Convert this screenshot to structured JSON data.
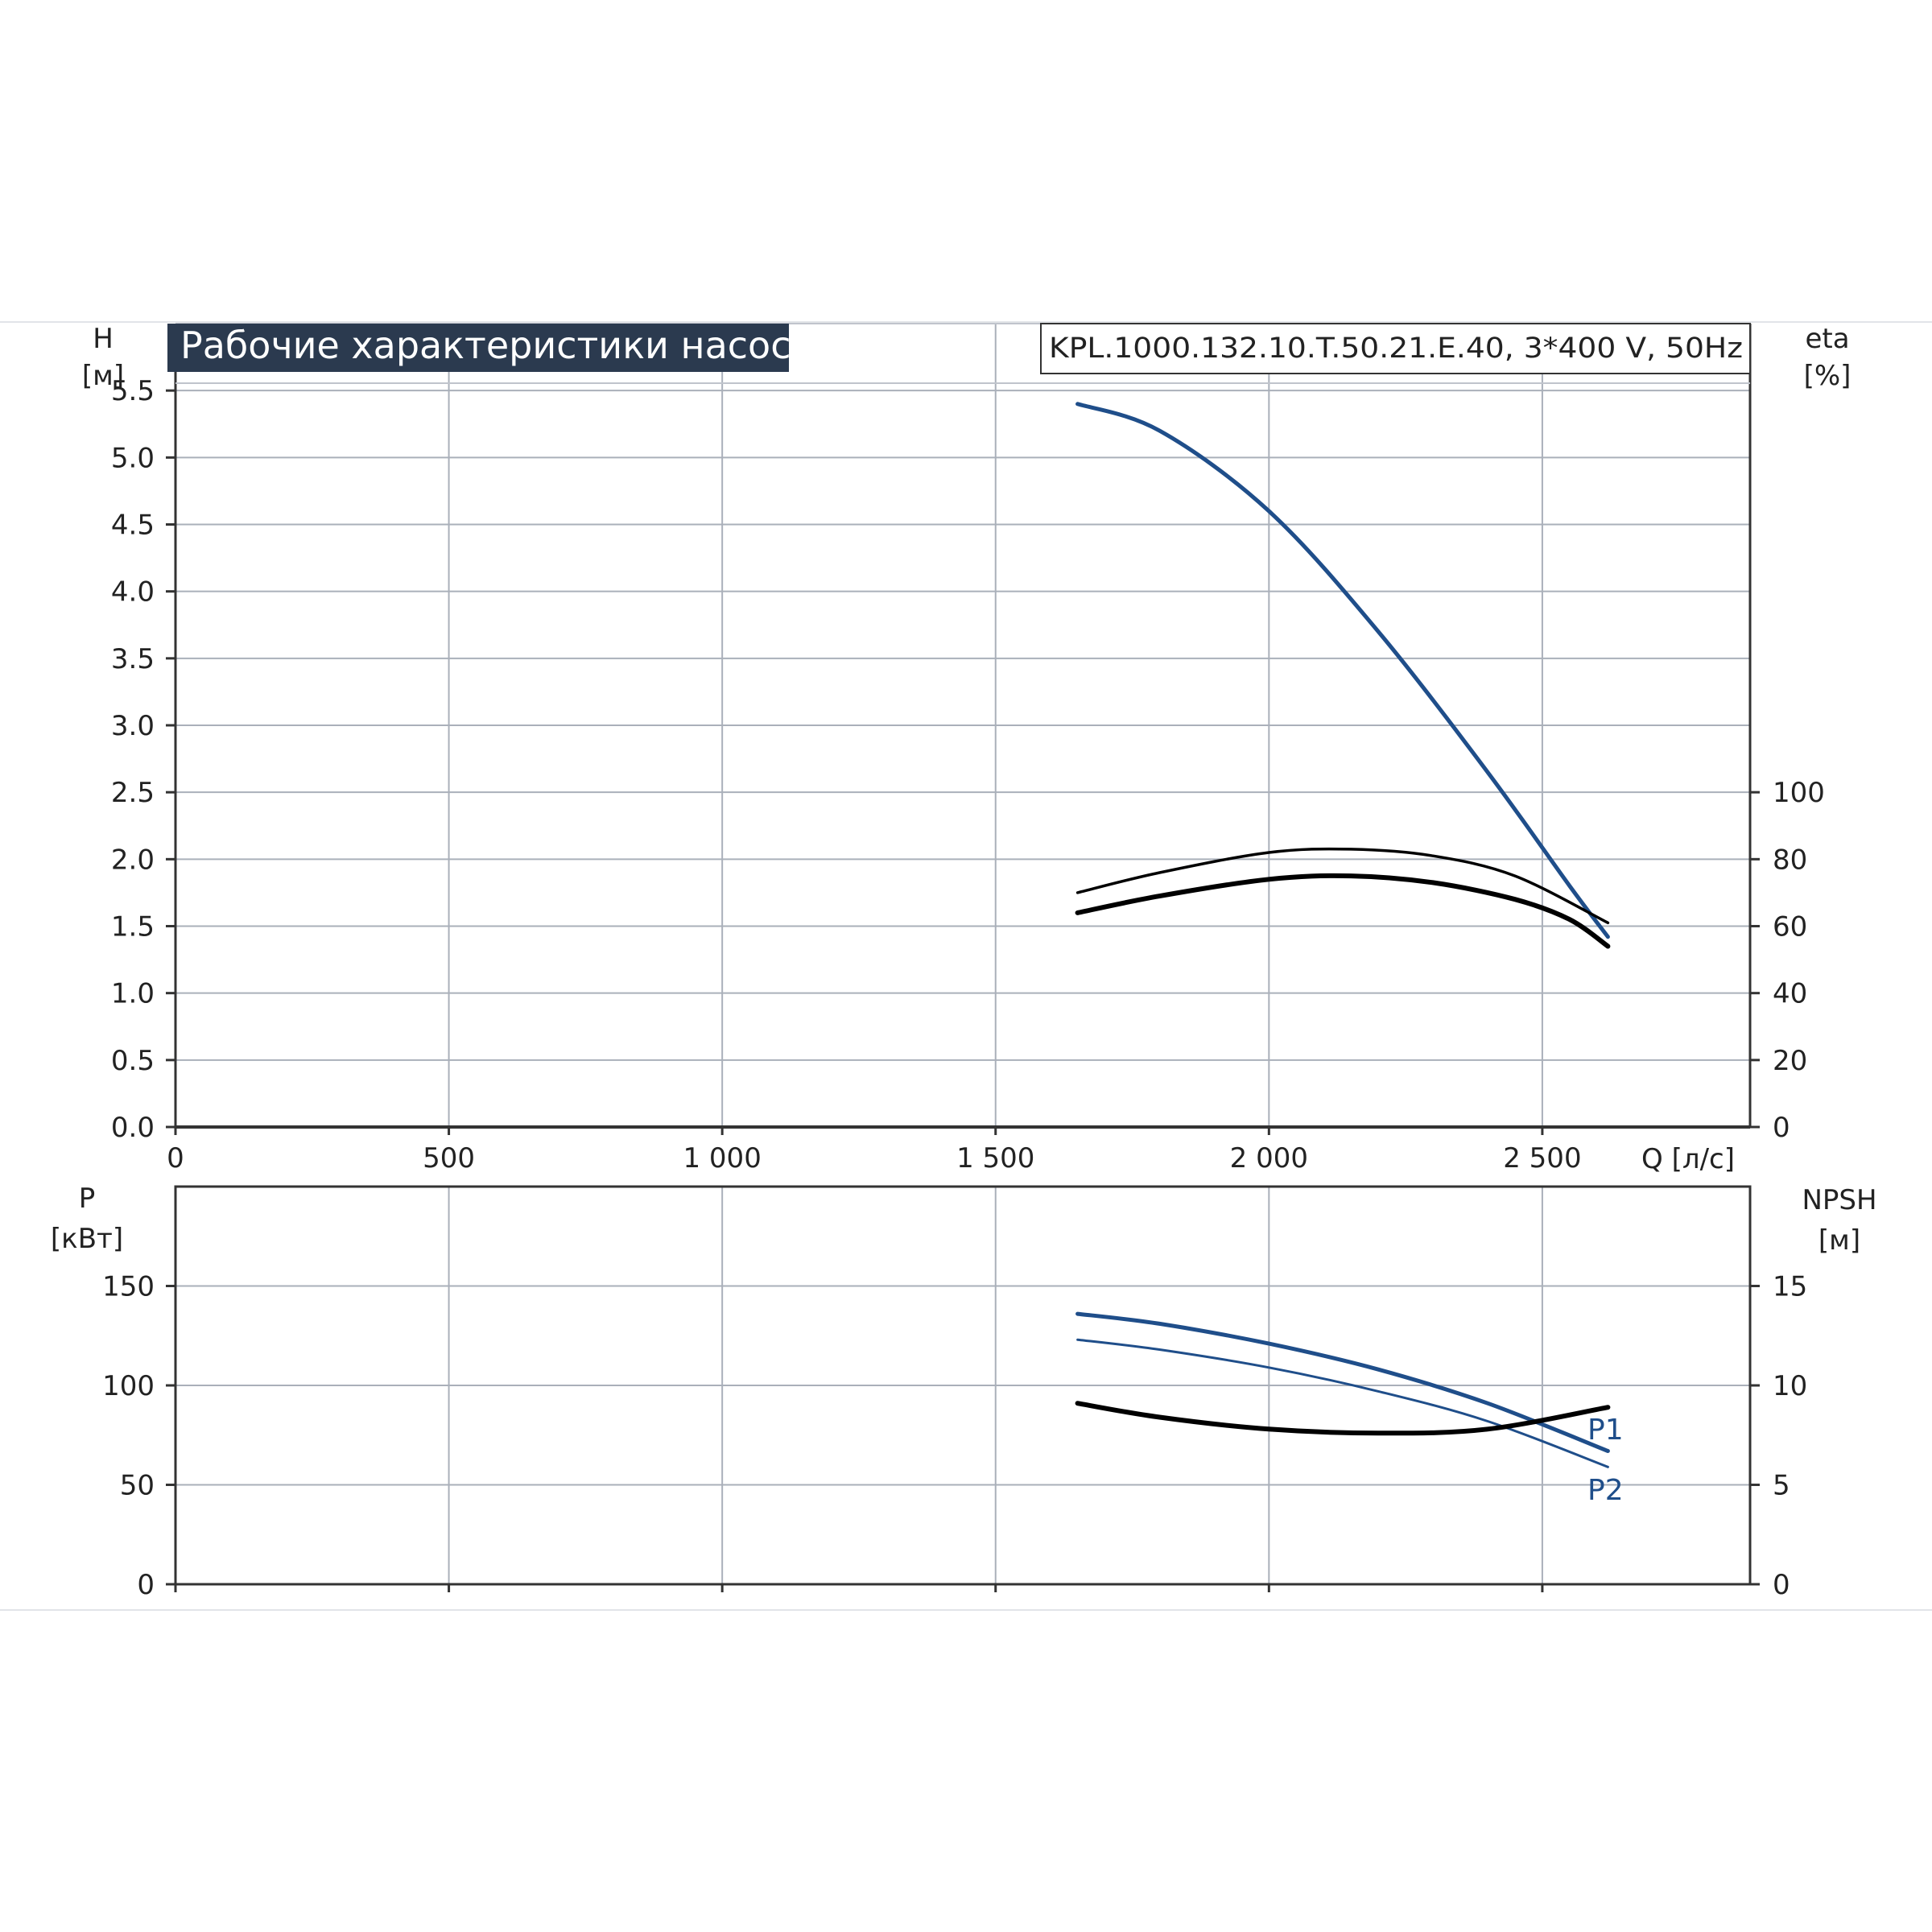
{
  "header": {
    "title": "Рабочие характеристики насоса",
    "model": "KPL.1000.132.10.T.50.21.E.40, 3*400 V, 50Hz"
  },
  "colors": {
    "blue": "#1f4e8a",
    "black": "#000000",
    "grid": "#aab0ba",
    "title_bg": "#2b3a4f",
    "title_fg": "#ffffff"
  },
  "chart_data": [
    {
      "type": "line",
      "panel": "top",
      "left_axis": {
        "label": "H",
        "unit": "[м]",
        "ylim": [
          0,
          6
        ],
        "ticks": [
          0,
          0.5,
          1,
          1.5,
          2,
          2.5,
          3,
          3.5,
          4,
          4.5,
          5,
          5.5
        ],
        "tick_labels": [
          "0.0",
          "0.5",
          "1.0",
          "1.5",
          "2.0",
          "2.5",
          "3.0",
          "3.5",
          "4.0",
          "4.5",
          "5.0",
          "5.5"
        ]
      },
      "right_axis": {
        "label": "eta",
        "unit": "[%]",
        "ylim": [
          0,
          240
        ],
        "ticks": [
          0,
          20,
          40,
          60,
          80,
          100
        ],
        "tick_labels": [
          "0",
          "20",
          "40",
          "60",
          "80",
          "100"
        ]
      },
      "x_axis": {
        "label": "Q [л/с]",
        "xlim": [
          0,
          2880
        ],
        "ticks": [
          0,
          500,
          1000,
          1500,
          2000,
          2500
        ],
        "tick_labels": [
          "0",
          "500",
          "1 000",
          "1 500",
          "2 000",
          "2 500"
        ]
      },
      "grid": true,
      "series": [
        {
          "axis": "left",
          "color": "blue",
          "width": 5,
          "x": [
            1650,
            1800,
            2000,
            2200,
            2400,
            2550,
            2620
          ],
          "y": [
            5.4,
            5.2,
            4.6,
            3.7,
            2.65,
            1.8,
            1.42
          ]
        },
        {
          "axis": "right",
          "color": "black",
          "width": 3.5,
          "x": [
            1650,
            1800,
            2000,
            2150,
            2300,
            2450,
            2620
          ],
          "y": [
            70,
            76,
            82,
            83,
            81,
            75,
            61
          ]
        },
        {
          "axis": "right",
          "color": "black",
          "width": 6,
          "x": [
            1650,
            1800,
            2000,
            2150,
            2300,
            2450,
            2550,
            2620
          ],
          "y": [
            64,
            69,
            74,
            75,
            73,
            68,
            62,
            54
          ]
        }
      ]
    },
    {
      "type": "line",
      "panel": "bottom",
      "left_axis": {
        "label": "P",
        "unit": "[кВт]",
        "ylim": [
          0,
          200
        ],
        "ticks": [
          0,
          50,
          100,
          150
        ],
        "tick_labels": [
          "0",
          "50",
          "100",
          "150"
        ]
      },
      "right_axis": {
        "label": "NPSH",
        "unit": "[м]",
        "ylim": [
          0,
          20
        ],
        "ticks": [
          0,
          5,
          10,
          15
        ],
        "tick_labels": [
          "0",
          "5",
          "10",
          "15"
        ]
      },
      "x_axis": {
        "xlim": [
          0,
          2880
        ],
        "ticks": [
          0,
          500,
          1000,
          1500,
          2000,
          2500
        ]
      },
      "grid": true,
      "series": [
        {
          "name": "P1",
          "axis": "left",
          "color": "blue",
          "width": 5,
          "x": [
            1650,
            1800,
            2000,
            2200,
            2400,
            2620
          ],
          "y": [
            136,
            131,
            121,
            108,
            91,
            67
          ]
        },
        {
          "name": "P2",
          "axis": "left",
          "color": "blue",
          "width": 3,
          "x": [
            1650,
            1800,
            2000,
            2200,
            2400,
            2620
          ],
          "y": [
            123,
            118,
            109,
            97,
            82,
            59
          ]
        },
        {
          "axis": "right",
          "color": "black",
          "width": 6,
          "x": [
            1650,
            1800,
            2000,
            2200,
            2400,
            2620
          ],
          "y": [
            9.1,
            8.4,
            7.8,
            7.6,
            7.8,
            8.9
          ]
        }
      ]
    }
  ]
}
